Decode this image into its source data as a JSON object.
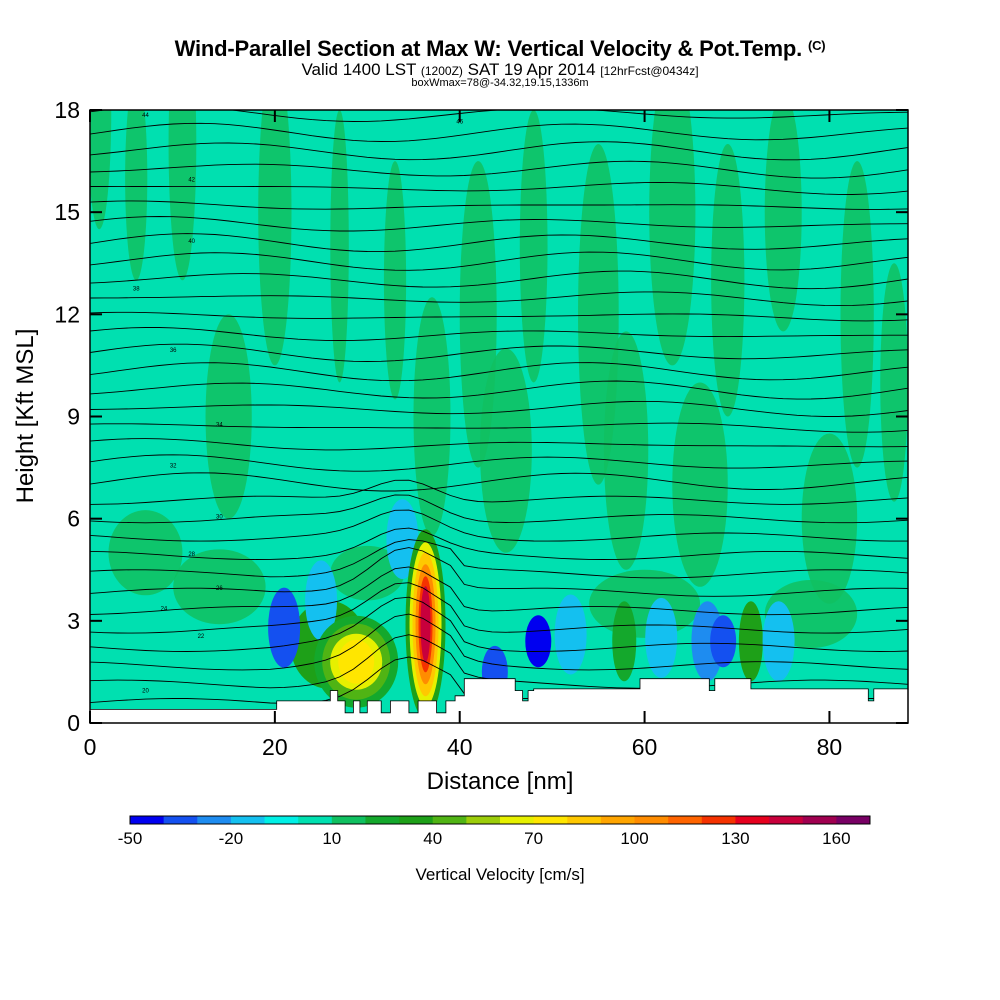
{
  "header": {
    "title": "Wind-Parallel Section at Max W: Vertical Velocity & Pot.Temp.",
    "title_mark": "(C)",
    "valid_prefix": "Valid 1400 LST",
    "valid_zulu": "(1200Z)",
    "valid_date": "SAT 19 Apr 2014",
    "forecast": "[12hrFcst@0434z]",
    "box_info": "boxWmax=78@-34.32,19.15,1336m"
  },
  "chart_data": {
    "type": "heatmap",
    "xlabel": "Distance [nm]",
    "ylabel": "Height [Kft MSL]",
    "xlim": [
      0,
      88.5
    ],
    "ylim": [
      0,
      18
    ],
    "x_ticks": [
      "0",
      "20",
      "40",
      "60",
      "80"
    ],
    "y_ticks": [
      "0",
      "3",
      "6",
      "9",
      "12",
      "15",
      "18"
    ],
    "x_tick_values": [
      0,
      20,
      40,
      60,
      80
    ],
    "y_tick_values": [
      0,
      3,
      6,
      9,
      12,
      15,
      18
    ],
    "background_w_class": "0 to 10",
    "colorbar": {
      "title": "Vertical Velocity [cm/s]",
      "tick_labels": [
        "-50",
        "-20",
        "10",
        "40",
        "70",
        "100",
        "130",
        "160"
      ],
      "tick_values": [
        -50,
        -20,
        10,
        40,
        70,
        100,
        130,
        160
      ],
      "bins": [
        -50,
        -40,
        -30,
        -20,
        -10,
        0,
        10,
        20,
        30,
        40,
        50,
        60,
        70,
        80,
        90,
        100,
        110,
        120,
        130,
        140,
        150,
        160,
        170
      ],
      "colors": [
        "#0000f0",
        "#1450f0",
        "#1e8cf0",
        "#14c0f0",
        "#00f0e6",
        "#00e0b0",
        "#10c060",
        "#14a82c",
        "#1ea018",
        "#50b414",
        "#9ccd0a",
        "#e6f000",
        "#ffe600",
        "#ffc800",
        "#ffa500",
        "#ff8c00",
        "#ff6400",
        "#f53200",
        "#e6001e",
        "#c8003c",
        "#a00050",
        "#780064"
      ]
    },
    "velocity_features": [
      {
        "x": 36.3,
        "y": 2.9,
        "w": 140
      },
      {
        "x": 36.3,
        "y": 3.0,
        "w": 125
      },
      {
        "x": 36.1,
        "y": 3.2,
        "w": 105
      },
      {
        "x": 28.8,
        "y": 1.8,
        "w": 73
      },
      {
        "x": 25.8,
        "y": 2.3,
        "w": 35
      },
      {
        "x": 33.8,
        "y": 5.4,
        "w": -20
      },
      {
        "x": 25.0,
        "y": 3.6,
        "w": -18
      },
      {
        "x": 21.0,
        "y": 2.8,
        "w": -32
      },
      {
        "x": 48.5,
        "y": 2.4,
        "w": -42
      },
      {
        "x": 43.8,
        "y": 1.5,
        "w": -38
      },
      {
        "x": 52.0,
        "y": 2.6,
        "w": -18
      },
      {
        "x": 57.8,
        "y": 2.4,
        "w": 28
      },
      {
        "x": 61.8,
        "y": 2.5,
        "w": -18
      },
      {
        "x": 66.8,
        "y": 2.4,
        "w": -25
      },
      {
        "x": 68.5,
        "y": 2.4,
        "w": -40
      },
      {
        "x": 71.5,
        "y": 2.4,
        "w": 30
      },
      {
        "x": 74.5,
        "y": 2.4,
        "w": -18
      }
    ],
    "potential_temperature_labels": [
      "20",
      "22",
      "24",
      "26",
      "28",
      "30",
      "32",
      "34",
      "36",
      "38",
      "40",
      "42",
      "44",
      "46"
    ],
    "terrain_profile": {
      "distance": [
        0,
        20.2,
        20.2,
        26.0,
        26.0,
        26.8,
        26.8,
        27.6,
        27.6,
        28.5,
        28.5,
        29.2,
        29.2,
        30.0,
        30.0,
        31.5,
        31.5,
        32.5,
        32.5,
        34.5,
        34.5,
        35.5,
        35.5,
        37.5,
        37.5,
        38.5,
        38.5,
        39.5,
        39.5,
        40.5,
        40.5,
        46.0,
        46.0,
        46.8,
        46.8,
        47.4,
        47.4,
        48.0,
        48.0,
        59.5,
        59.5,
        67.0,
        67.0,
        67.6,
        67.6,
        71.5,
        71.5,
        84.2,
        84.2,
        84.8,
        84.8,
        88.5
      ],
      "height_kft": [
        0.4,
        0.4,
        0.65,
        0.65,
        0.95,
        0.95,
        0.65,
        0.65,
        0.3,
        0.3,
        0.65,
        0.65,
        0.3,
        0.3,
        0.65,
        0.65,
        0.3,
        0.3,
        0.65,
        0.65,
        0.3,
        0.3,
        0.65,
        0.65,
        0.3,
        0.3,
        0.65,
        0.65,
        0.8,
        0.8,
        1.3,
        1.3,
        0.95,
        0.95,
        0.65,
        0.65,
        0.95,
        0.95,
        1.0,
        1.0,
        1.3,
        1.3,
        0.95,
        0.95,
        1.3,
        1.3,
        1.0,
        1.0,
        0.65,
        0.65,
        1.0,
        1.0
      ]
    }
  }
}
